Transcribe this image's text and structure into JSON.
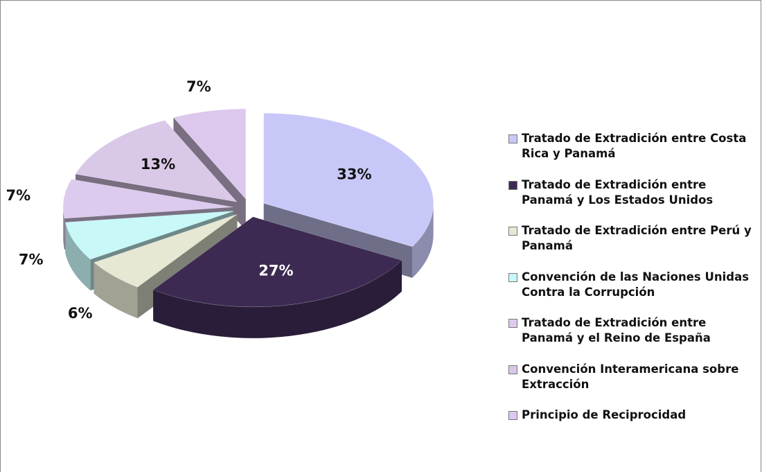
{
  "chart_data": {
    "type": "pie",
    "categories": [
      "Tratado de Extradición entre Costa Rica y Panamá",
      "Tratado de Extradición entre Panamá y Los Estados Unidos",
      "Tratado de Extradición entre Perú y Panamá",
      "Convención de las Naciones Unidas Contra la Corrupción",
      "Tratado de Extradición entre Panamá y el Reino de España",
      "Convención Interamericana sobre Extracción",
      "Principio de Reciprocidad"
    ],
    "values": [
      33,
      27,
      6,
      7,
      7,
      13,
      7
    ],
    "value_labels": [
      "33%",
      "27%",
      "6%",
      "7%",
      "7%",
      "13%",
      "7%"
    ],
    "colors": [
      "#c8c8f8",
      "#3c2a52",
      "#e6e8d4",
      "#c8f8f8",
      "#dccbee",
      "#dac8e8",
      "#dcc8ec"
    ],
    "legend": "right"
  }
}
